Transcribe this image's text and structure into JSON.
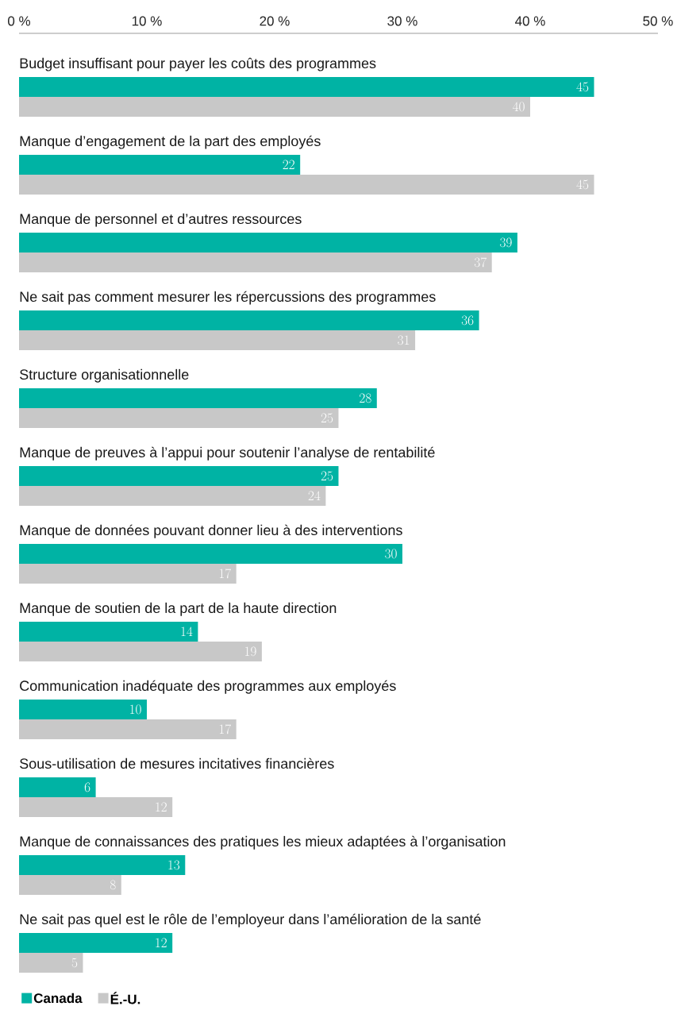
{
  "chart_data": {
    "type": "bar",
    "orientation": "horizontal",
    "categories": [
      "Budget insuffisant pour payer les coûts des programmes",
      "Manque d’engagement de la part des employés",
      "Manque de personnel et d’autres ressources",
      "Ne sait pas comment mesurer les répercussions des programmes",
      "Structure organisationnelle",
      "Manque de preuves à l’appui pour soutenir l’analyse de rentabilité",
      "Manque de données pouvant donner lieu à des interventions",
      "Manque de soutien de la part de la haute direction",
      "Communication inadéquate des programmes aux employés",
      "Sous-utilisation de mesures incitatives financières",
      "Manque de connaissances des pratiques les mieux adaptées à l’organisation",
      "Ne sait pas quel est le rôle de l’employeur dans l’amélioration de la santé"
    ],
    "series": [
      {
        "name": "Canada",
        "color": "#00b3a4",
        "values": [
          45,
          22,
          39,
          36,
          28,
          25,
          30,
          14,
          10,
          6,
          13,
          12
        ]
      },
      {
        "name": "É.-U.",
        "color": "#c8c8c8",
        "values": [
          40,
          45,
          37,
          31,
          25,
          24,
          17,
          19,
          17,
          12,
          8,
          5
        ]
      }
    ],
    "xlim": [
      0,
      50
    ],
    "xticks": [
      {
        "value": 0,
        "label": "0 %"
      },
      {
        "value": 10,
        "label": "10 %"
      },
      {
        "value": 20,
        "label": "20 %"
      },
      {
        "value": 30,
        "label": "30 %"
      },
      {
        "value": 40,
        "label": "40 %"
      },
      {
        "value": 50,
        "label": "50 %"
      }
    ],
    "data_labels": true,
    "legend": "bottom left"
  }
}
